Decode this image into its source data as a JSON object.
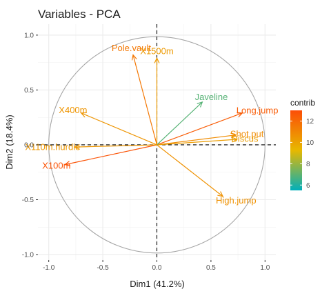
{
  "chart_data": {
    "type": "scatter",
    "title": "Variables - PCA",
    "xlabel": "Dim1 (41.2%)",
    "ylabel": "Dim2 (18.4%)",
    "xlim": [
      -1.1,
      1.1
    ],
    "ylim": [
      -1.05,
      1.1
    ],
    "xticks": [
      -1.0,
      -0.5,
      0.0,
      0.5,
      1.0
    ],
    "yticks": [
      -1.0,
      -0.5,
      0.0,
      0.5,
      1.0
    ],
    "xtick_labels": [
      "-1.0",
      "-0.5",
      "0.0",
      "0.5",
      "1.0"
    ],
    "ytick_labels": [
      "-1.0",
      "-0.5",
      "0.0",
      "0.5",
      "1.0"
    ],
    "grid": true,
    "unit_circle": true,
    "variables": [
      {
        "name": "X100m",
        "x": -0.85,
        "y": -0.18,
        "contrib": 12.8
      },
      {
        "name": "Long.jump",
        "x": 0.79,
        "y": 0.29,
        "contrib": 12.5
      },
      {
        "name": "Shot.put",
        "x": 0.73,
        "y": 0.09,
        "contrib": 10.8
      },
      {
        "name": "High.jump",
        "x": 0.61,
        "y": -0.47,
        "contrib": 10.6
      },
      {
        "name": "X400m",
        "x": -0.7,
        "y": 0.29,
        "contrib": 10.5
      },
      {
        "name": "X110m.hurdle",
        "x": -0.76,
        "y": -0.02,
        "contrib": 10.4
      },
      {
        "name": "Discus",
        "x": 0.74,
        "y": 0.05,
        "contrib": 10.2
      },
      {
        "name": "Pole.vault",
        "x": -0.22,
        "y": 0.82,
        "contrib": 11.5
      },
      {
        "name": "Javeline",
        "x": 0.42,
        "y": 0.39,
        "contrib": 6.9
      },
      {
        "name": "X1500m",
        "x": 0.0,
        "y": 0.79,
        "contrib": 10.3
      }
    ],
    "legend": {
      "title": "contrib",
      "position": "right",
      "range": [
        5.5,
        13.0
      ],
      "ticks": [
        6,
        8,
        10,
        12
      ],
      "colors": [
        "#00AFBB",
        "#E7B800",
        "#FC4E07"
      ]
    }
  }
}
